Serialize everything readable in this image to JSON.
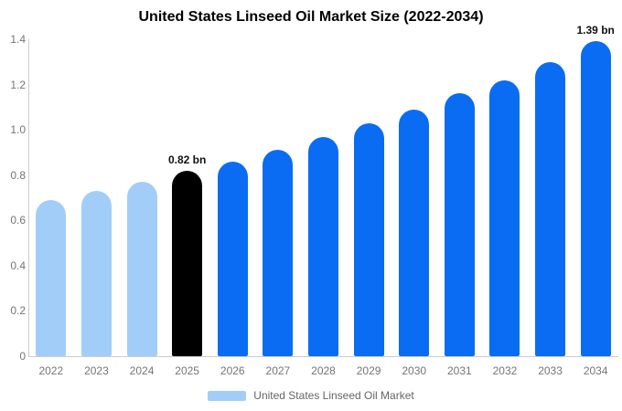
{
  "title": "United States Linseed Oil Market Size (2022-2034)",
  "legend": {
    "label": "United States Linseed Oil Market",
    "swatch_color": "#a3cdf9"
  },
  "colors": {
    "historical_bar": "#a3cdf9",
    "highlight_bar": "#000000",
    "forecast_bar": "#0a6cf2",
    "axis_line": "#cccccc",
    "tick_text": "#757575",
    "annotation_text": "#111111",
    "title_text": "#000000"
  },
  "chart_data": {
    "type": "bar",
    "title": "United States Linseed Oil Market Size (2022-2034)",
    "xlabel": "",
    "ylabel": "",
    "unit": "bn",
    "grid": false,
    "legend_position": "bottom",
    "ylim": [
      0,
      1.4
    ],
    "yticks": [
      "0",
      "0.2",
      "0.4",
      "0.6",
      "0.8",
      "1.0",
      "1.2",
      "1.4"
    ],
    "categories": [
      "2022",
      "2023",
      "2024",
      "2025",
      "2026",
      "2027",
      "2028",
      "2029",
      "2030",
      "2031",
      "2032",
      "2033",
      "2034"
    ],
    "values": [
      0.69,
      0.73,
      0.77,
      0.82,
      0.86,
      0.91,
      0.97,
      1.03,
      1.09,
      1.16,
      1.22,
      1.3,
      1.39
    ],
    "bar_colors": [
      "#a3cdf9",
      "#a3cdf9",
      "#a3cdf9",
      "#000000",
      "#0a6cf2",
      "#0a6cf2",
      "#0a6cf2",
      "#0a6cf2",
      "#0a6cf2",
      "#0a6cf2",
      "#0a6cf2",
      "#0a6cf2",
      "#0a6cf2"
    ],
    "annotations": [
      {
        "index": 3,
        "label": "0.82 bn"
      },
      {
        "index": 12,
        "label": "1.39 bn"
      }
    ],
    "series_name": "United States Linseed Oil Market"
  }
}
